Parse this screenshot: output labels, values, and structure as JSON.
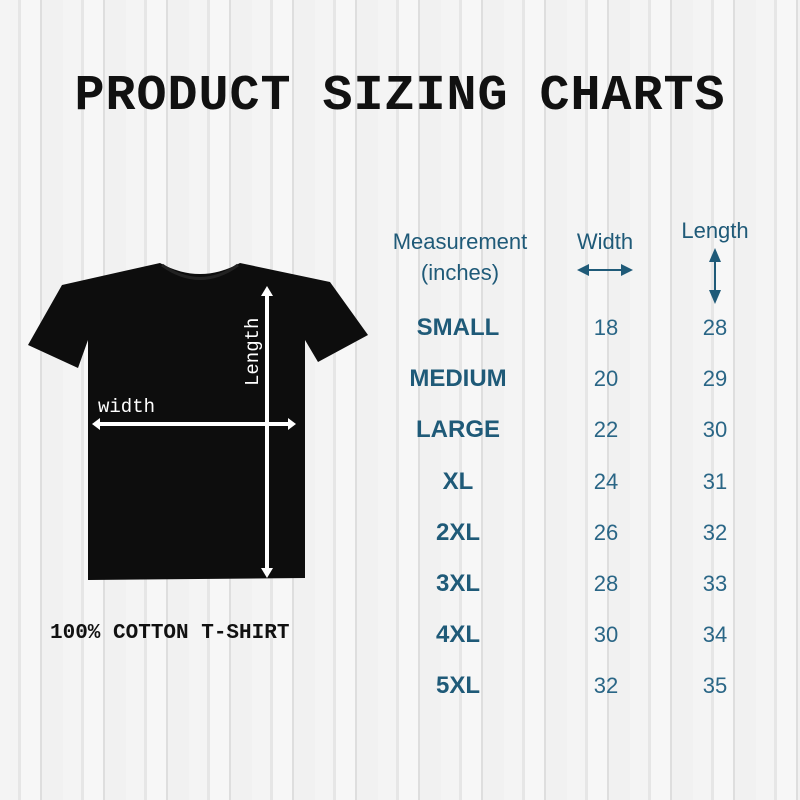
{
  "title": "PRODUCT SIZING CHARTS",
  "shirt": {
    "width_label": "width",
    "length_label": "Length",
    "caption": "100% COTTON T-SHIRT"
  },
  "table": {
    "headers": {
      "measurement": "Measurement",
      "units": "(inches)",
      "width": "Width",
      "length": "Length"
    },
    "rows": [
      {
        "size": "SMALL",
        "width": "18",
        "length": "28"
      },
      {
        "size": "MEDIUM",
        "width": "20",
        "length": "29"
      },
      {
        "size": "LARGE",
        "width": "22",
        "length": "30"
      },
      {
        "size": "XL",
        "width": "24",
        "length": "31"
      },
      {
        "size": "2XL",
        "width": "26",
        "length": "32"
      },
      {
        "size": "3XL",
        "width": "28",
        "length": "33"
      },
      {
        "size": "4XL",
        "width": "30",
        "length": "34"
      },
      {
        "size": "5XL",
        "width": "32",
        "length": "35"
      }
    ]
  },
  "colors": {
    "accent": "#1f5a78",
    "shirt": "#0d0d0d"
  }
}
